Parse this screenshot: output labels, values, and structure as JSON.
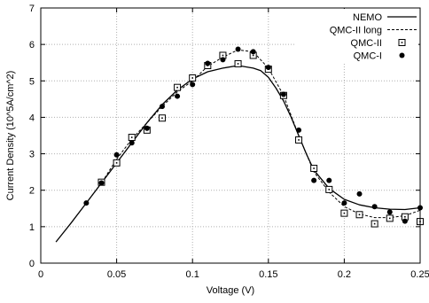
{
  "chart_data": {
    "type": "line",
    "title": "",
    "xlabel": "Voltage (V)",
    "ylabel": "Current Density (10^5A/cm^2)",
    "xlim": [
      0,
      0.25
    ],
    "ylim": [
      0,
      7
    ],
    "x_ticks": [
      0,
      0.05,
      0.1,
      0.15,
      0.2,
      0.25
    ],
    "x_tick_labels": [
      "0",
      "0.05",
      "0.1",
      "0.15",
      "0.2",
      "0.25"
    ],
    "y_ticks": [
      0,
      1,
      2,
      3,
      4,
      5,
      6,
      7
    ],
    "y_tick_labels": [
      "0",
      "1",
      "2",
      "3",
      "4",
      "5",
      "6",
      "7"
    ],
    "grid": true,
    "legend_position": "top-right",
    "series": [
      {
        "name": "NEMO",
        "style": "solid-line",
        "x": [
          0.01,
          0.02,
          0.03,
          0.04,
          0.05,
          0.06,
          0.07,
          0.08,
          0.09,
          0.1,
          0.11,
          0.12,
          0.13,
          0.14,
          0.145,
          0.15,
          0.155,
          0.16,
          0.165,
          0.17,
          0.175,
          0.18,
          0.19,
          0.2,
          0.21,
          0.22,
          0.23,
          0.24,
          0.25
        ],
        "y": [
          0.58,
          1.1,
          1.65,
          2.2,
          2.75,
          3.3,
          3.85,
          4.35,
          4.75,
          5.05,
          5.25,
          5.35,
          5.42,
          5.35,
          5.28,
          5.1,
          4.8,
          4.45,
          4.0,
          3.5,
          3.0,
          2.55,
          2.05,
          1.75,
          1.6,
          1.52,
          1.48,
          1.47,
          1.52
        ]
      },
      {
        "name": "QMC-II long",
        "style": "dashed-line",
        "x": [
          0.03,
          0.04,
          0.05,
          0.06,
          0.07,
          0.08,
          0.09,
          0.1,
          0.11,
          0.12,
          0.13,
          0.14,
          0.15,
          0.16,
          0.17,
          0.18,
          0.19,
          0.2,
          0.21,
          0.22,
          0.23,
          0.24,
          0.25
        ],
        "y": [
          1.65,
          2.2,
          2.85,
          3.4,
          3.85,
          4.3,
          4.7,
          5.0,
          5.4,
          5.65,
          5.85,
          5.8,
          5.35,
          4.6,
          3.5,
          2.5,
          1.95,
          1.55,
          1.35,
          1.25,
          1.25,
          1.3,
          1.45
        ]
      },
      {
        "name": "QMC-II",
        "style": "open-square",
        "x": [
          0.04,
          0.05,
          0.06,
          0.07,
          0.08,
          0.09,
          0.1,
          0.11,
          0.12,
          0.13,
          0.14,
          0.15,
          0.16,
          0.17,
          0.18,
          0.19,
          0.2,
          0.21,
          0.22,
          0.23,
          0.24,
          0.25
        ],
        "y": [
          2.22,
          2.75,
          3.45,
          3.65,
          3.98,
          4.82,
          5.08,
          5.42,
          5.7,
          5.47,
          5.7,
          5.32,
          4.6,
          3.38,
          2.6,
          2.02,
          1.37,
          1.33,
          1.08,
          1.23,
          1.27,
          1.14
        ]
      },
      {
        "name": "QMC-I",
        "style": "filled-circle",
        "x": [
          0.03,
          0.04,
          0.05,
          0.06,
          0.07,
          0.08,
          0.09,
          0.1,
          0.11,
          0.12,
          0.13,
          0.14,
          0.15,
          0.16,
          0.17,
          0.18,
          0.19,
          0.2,
          0.21,
          0.22,
          0.23,
          0.24,
          0.25
        ],
        "y": [
          1.65,
          2.2,
          2.97,
          3.3,
          3.7,
          4.3,
          4.58,
          4.9,
          5.48,
          5.58,
          5.87,
          5.8,
          5.37,
          4.63,
          3.65,
          2.27,
          2.27,
          1.65,
          1.9,
          1.55,
          1.4,
          1.15,
          1.52
        ]
      }
    ]
  }
}
